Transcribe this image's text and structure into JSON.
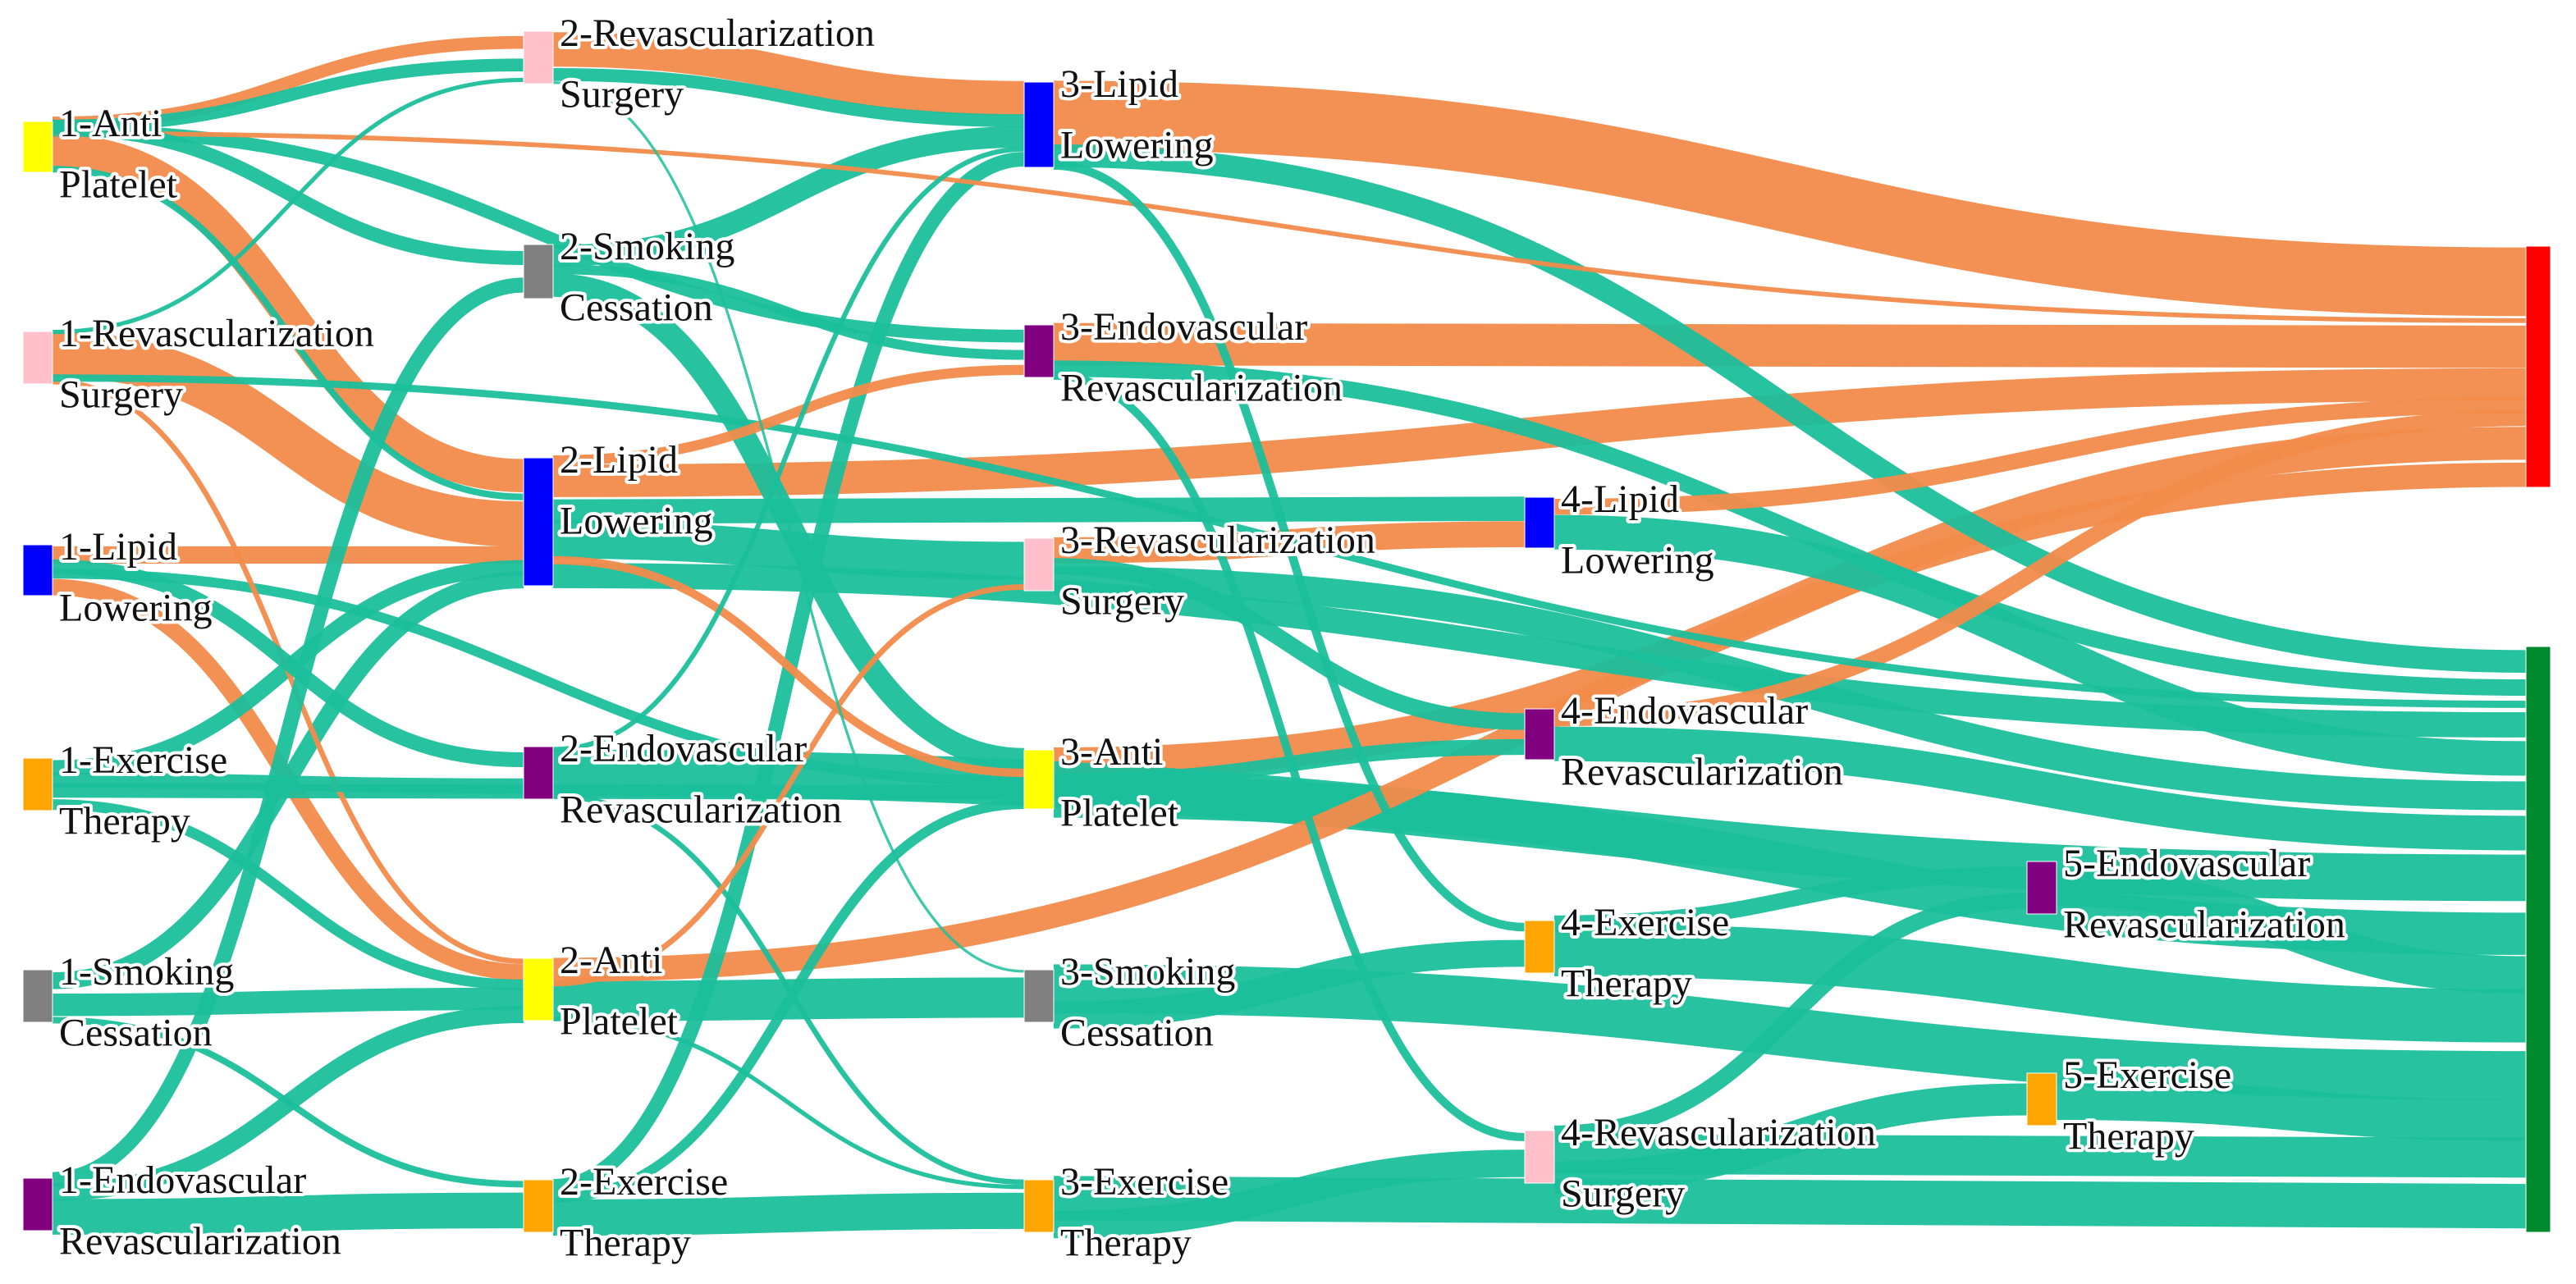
{
  "colors": {
    "negative_flow": "#f28b4b",
    "positive_flow": "#1bbf9b",
    "negative_outcome": "#ff0000",
    "positive_outcome": "#008a2e"
  },
  "nodes": [
    {
      "id": "1-AP",
      "label": [
        "1-Anti",
        "Platelet"
      ],
      "color": "#ffff00"
    },
    {
      "id": "1-RS",
      "label": [
        "1-Revascularization",
        "Surgery"
      ],
      "color": "#ffc0cb"
    },
    {
      "id": "1-LL",
      "label": [
        "1-Lipid",
        "Lowering"
      ],
      "color": "#0000ff"
    },
    {
      "id": "1-ET",
      "label": [
        "1-Exercise",
        "Therapy"
      ],
      "color": "#ffa500"
    },
    {
      "id": "1-SC",
      "label": [
        "1-Smoking",
        "Cessation"
      ],
      "color": "#808080"
    },
    {
      "id": "1-ER",
      "label": [
        "1-Endovascular",
        "Revascularization"
      ],
      "color": "#800080"
    },
    {
      "id": "2-RS",
      "label": [
        "2-Revascularization",
        "Surgery"
      ],
      "color": "#ffc0cb"
    },
    {
      "id": "2-SC",
      "label": [
        "2-Smoking",
        "Cessation"
      ],
      "color": "#808080"
    },
    {
      "id": "2-LL",
      "label": [
        "2-Lipid",
        "Lowering"
      ],
      "color": "#0000ff"
    },
    {
      "id": "2-ER",
      "label": [
        "2-Endovascular",
        "Revascularization"
      ],
      "color": "#800080"
    },
    {
      "id": "2-AP",
      "label": [
        "2-Anti",
        "Platelet"
      ],
      "color": "#ffff00"
    },
    {
      "id": "2-ET",
      "label": [
        "2-Exercise",
        "Therapy"
      ],
      "color": "#ffa500"
    },
    {
      "id": "3-LL",
      "label": [
        "3-Lipid",
        "Lowering"
      ],
      "color": "#0000ff"
    },
    {
      "id": "3-ER",
      "label": [
        "3-Endovascular",
        "Revascularization"
      ],
      "color": "#800080"
    },
    {
      "id": "3-RS",
      "label": [
        "3-Revascularization",
        "Surgery"
      ],
      "color": "#ffc0cb"
    },
    {
      "id": "3-AP",
      "label": [
        "3-Anti",
        "Platelet"
      ],
      "color": "#ffff00"
    },
    {
      "id": "3-SC",
      "label": [
        "3-Smoking",
        "Cessation"
      ],
      "color": "#808080"
    },
    {
      "id": "3-ET",
      "label": [
        "3-Exercise",
        "Therapy"
      ],
      "color": "#ffa500"
    },
    {
      "id": "4-LL",
      "label": [
        "4-Lipid",
        "Lowering"
      ],
      "color": "#0000ff"
    },
    {
      "id": "4-ER",
      "label": [
        "4-Endovascular",
        "Revascularization"
      ],
      "color": "#800080"
    },
    {
      "id": "4-ET",
      "label": [
        "4-Exercise",
        "Therapy"
      ],
      "color": "#ffa500"
    },
    {
      "id": "4-RS",
      "label": [
        "4-Revascularization",
        "Surgery"
      ],
      "color": "#ffc0cb"
    },
    {
      "id": "5-ER",
      "label": [
        "5-Endovascular",
        "Revascularization"
      ],
      "color": "#800080"
    },
    {
      "id": "5-ET",
      "label": [
        "5-Exercise",
        "Therapy"
      ],
      "color": "#ffa500"
    },
    {
      "id": "OUT-NEG",
      "label": [],
      "color": "#ff0000"
    },
    {
      "id": "OUT-POS",
      "label": [],
      "color": "#008a2e"
    }
  ],
  "links": [
    {
      "from": "1-AP",
      "to": "2-LL",
      "value": 30,
      "kind": "neg"
    },
    {
      "from": "1-AP",
      "to": "2-LL",
      "value": 6,
      "kind": "pos"
    },
    {
      "from": "1-AP",
      "to": "2-RS",
      "value": 3,
      "kind": "neg"
    },
    {
      "from": "1-AP",
      "to": "2-RS",
      "value": 3,
      "kind": "pos"
    },
    {
      "from": "1-AP",
      "to": "3-ER",
      "value": 3,
      "kind": "pos"
    },
    {
      "from": "1-AP",
      "to": "OUT-NEG",
      "value": 3,
      "kind": "neg"
    },
    {
      "from": "1-AP",
      "to": "2-SC",
      "value": 1,
      "kind": "pos"
    },
    {
      "from": "1-RS",
      "to": "2-LL",
      "value": 40,
      "kind": "neg"
    },
    {
      "from": "1-RS",
      "to": "2-AP",
      "value": 4,
      "kind": "neg"
    },
    {
      "from": "1-RS",
      "to": "OUT-POS",
      "value": 3,
      "kind": "pos"
    },
    {
      "from": "1-RS",
      "to": "2-RS",
      "value": 1,
      "kind": "pos"
    },
    {
      "from": "1-LL",
      "to": "2-LL",
      "value": 12,
      "kind": "neg"
    },
    {
      "from": "1-LL",
      "to": "2-AP",
      "value": 10,
      "kind": "neg"
    },
    {
      "from": "1-LL",
      "to": "3-AP",
      "value": 6,
      "kind": "pos"
    },
    {
      "from": "1-LL",
      "to": "2-ER",
      "value": 2,
      "kind": "pos"
    },
    {
      "from": "1-ET",
      "to": "2-LL",
      "value": 10,
      "kind": "pos"
    },
    {
      "from": "1-ET",
      "to": "3-AP",
      "value": 8,
      "kind": "pos"
    },
    {
      "from": "1-ET",
      "to": "2-AP",
      "value": 6,
      "kind": "pos"
    },
    {
      "from": "1-ET",
      "to": "2-ER",
      "value": 2,
      "kind": "pos"
    },
    {
      "from": "1-SC",
      "to": "2-AP",
      "value": 12,
      "kind": "pos"
    },
    {
      "from": "1-SC",
      "to": "2-LL",
      "value": 10,
      "kind": "pos"
    },
    {
      "from": "1-SC",
      "to": "2-ET",
      "value": 2,
      "kind": "pos"
    },
    {
      "from": "1-ER",
      "to": "2-ET",
      "value": 10,
      "kind": "pos"
    },
    {
      "from": "1-ER",
      "to": "2-AP",
      "value": 8,
      "kind": "pos"
    },
    {
      "from": "1-ER",
      "to": "2-SC",
      "value": 1,
      "kind": "pos"
    },
    {
      "from": "2-RS",
      "to": "3-LL",
      "value": 16,
      "kind": "neg"
    },
    {
      "from": "2-RS",
      "to": "3-LL",
      "value": 6,
      "kind": "pos"
    },
    {
      "from": "2-RS",
      "to": "3-SC",
      "value": 1,
      "kind": "pos"
    },
    {
      "from": "2-SC",
      "to": "3-LL",
      "value": 10,
      "kind": "pos"
    },
    {
      "from": "2-SC",
      "to": "3-AP",
      "value": 12,
      "kind": "pos"
    },
    {
      "from": "2-SC",
      "to": "3-ER",
      "value": 2,
      "kind": "pos"
    },
    {
      "from": "2-LL",
      "to": "OUT-NEG",
      "value": 14,
      "kind": "neg"
    },
    {
      "from": "2-LL",
      "to": "3-RS",
      "value": 12,
      "kind": "pos"
    },
    {
      "from": "2-LL",
      "to": "4-LL",
      "value": 10,
      "kind": "pos"
    },
    {
      "from": "2-LL",
      "to": "OUT-POS",
      "value": 8,
      "kind": "pos"
    },
    {
      "from": "2-LL",
      "to": "3-ER",
      "value": 2,
      "kind": "neg"
    },
    {
      "from": "2-LL",
      "to": "3-AP",
      "value": 4,
      "kind": "neg"
    },
    {
      "from": "2-ER",
      "to": "OUT-POS",
      "value": 14,
      "kind": "pos"
    },
    {
      "from": "2-ER",
      "to": "3-LL",
      "value": 2,
      "kind": "pos"
    },
    {
      "from": "2-ER",
      "to": "3-ET",
      "value": 2,
      "kind": "pos"
    },
    {
      "from": "2-AP",
      "to": "OUT-NEG",
      "value": 12,
      "kind": "neg"
    },
    {
      "from": "2-AP",
      "to": "3-SC",
      "value": 16,
      "kind": "pos"
    },
    {
      "from": "2-AP",
      "to": "3-RS",
      "value": 2,
      "kind": "neg"
    },
    {
      "from": "2-AP",
      "to": "3-ET",
      "value": 2,
      "kind": "pos"
    },
    {
      "from": "2-ET",
      "to": "3-ET",
      "value": 18,
      "kind": "pos"
    },
    {
      "from": "2-ET",
      "to": "3-LL",
      "value": 8,
      "kind": "pos"
    },
    {
      "from": "2-ET",
      "to": "3-AP",
      "value": 6,
      "kind": "pos"
    },
    {
      "from": "3-LL",
      "to": "OUT-NEG",
      "value": 34,
      "kind": "neg"
    },
    {
      "from": "3-LL",
      "to": "OUT-POS",
      "value": 8,
      "kind": "pos"
    },
    {
      "from": "3-LL",
      "to": "4-ET",
      "value": 2,
      "kind": "pos"
    },
    {
      "from": "3-ER",
      "to": "OUT-NEG",
      "value": 22,
      "kind": "neg"
    },
    {
      "from": "3-ER",
      "to": "OUT-POS",
      "value": 6,
      "kind": "pos"
    },
    {
      "from": "3-ER",
      "to": "4-RS",
      "value": 2,
      "kind": "pos"
    },
    {
      "from": "3-RS",
      "to": "4-LL",
      "value": 12,
      "kind": "neg"
    },
    {
      "from": "3-RS",
      "to": "OUT-POS",
      "value": 10,
      "kind": "pos"
    },
    {
      "from": "3-RS",
      "to": "4-ER",
      "value": 4,
      "kind": "pos"
    },
    {
      "from": "3-AP",
      "to": "OUT-NEG",
      "value": 18,
      "kind": "neg"
    },
    {
      "from": "3-AP",
      "to": "OUT-POS",
      "value": 16,
      "kind": "pos"
    },
    {
      "from": "3-AP",
      "to": "4-ER",
      "value": 4,
      "kind": "pos"
    },
    {
      "from": "3-SC",
      "to": "OUT-POS",
      "value": 16,
      "kind": "pos"
    },
    {
      "from": "3-SC",
      "to": "4-ET",
      "value": 6,
      "kind": "pos"
    },
    {
      "from": "3-ET",
      "to": "OUT-POS",
      "value": 14,
      "kind": "pos"
    },
    {
      "from": "3-ET",
      "to": "4-RS",
      "value": 6,
      "kind": "pos"
    },
    {
      "from": "4-LL",
      "to": "OUT-NEG",
      "value": 6,
      "kind": "neg"
    },
    {
      "from": "4-LL",
      "to": "OUT-POS",
      "value": 10,
      "kind": "pos"
    },
    {
      "from": "4-ER",
      "to": "OUT-NEG",
      "value": 6,
      "kind": "neg"
    },
    {
      "from": "4-ER",
      "to": "OUT-POS",
      "value": 10,
      "kind": "pos"
    },
    {
      "from": "4-ET",
      "to": "OUT-POS",
      "value": 16,
      "kind": "pos"
    },
    {
      "from": "4-ET",
      "to": "5-ER",
      "value": 2,
      "kind": "pos"
    },
    {
      "from": "4-RS",
      "to": "OUT-POS",
      "value": 12,
      "kind": "pos"
    },
    {
      "from": "4-RS",
      "to": "5-ET",
      "value": 4,
      "kind": "pos"
    },
    {
      "from": "4-RS",
      "to": "5-ER",
      "value": 2,
      "kind": "pos"
    },
    {
      "from": "5-ER",
      "to": "OUT-POS",
      "value": 6,
      "kind": "pos"
    },
    {
      "from": "5-ET",
      "to": "OUT-POS",
      "value": 8,
      "kind": "pos"
    }
  ]
}
